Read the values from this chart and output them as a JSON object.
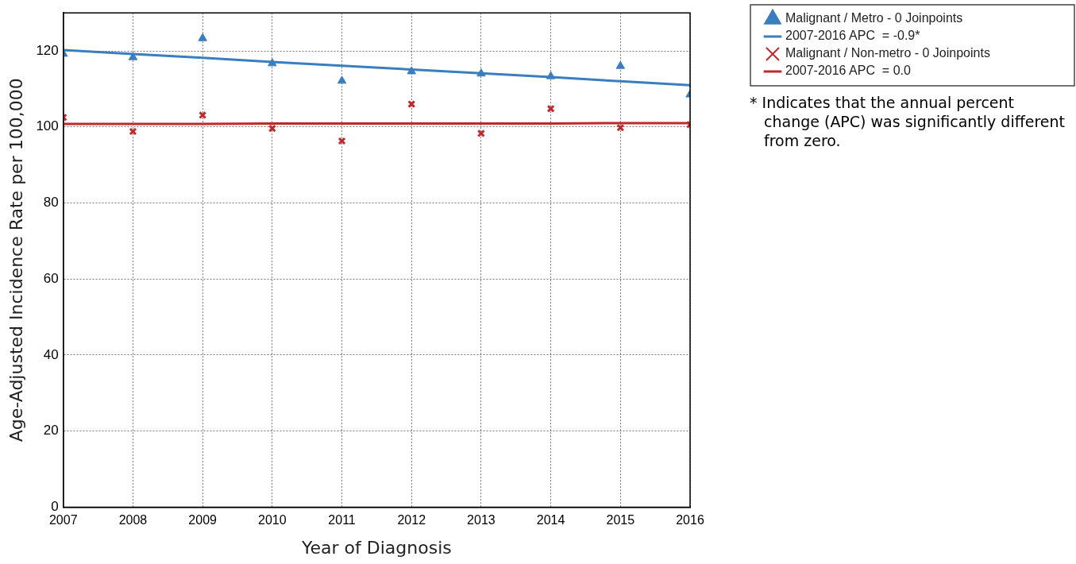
{
  "chart_data": {
    "type": "scatter",
    "xlabel": "Year of Diagnosis",
    "ylabel": "Age-Adjusted Incidence Rate per 100,000",
    "x": [
      2007,
      2008,
      2009,
      2010,
      2011,
      2012,
      2013,
      2014,
      2015,
      2016
    ],
    "series": [
      {
        "name": "Malignant / Metro - 0 Joinpoints",
        "type": "scatter",
        "marker": "triangle",
        "color": "#3a7ebf",
        "values": [
          119.2,
          118.3,
          123.3,
          116.7,
          112.1,
          114.6,
          114.0,
          113.3,
          116.0,
          108.5
        ]
      },
      {
        "name": "2007-2016 APC  = -0.9*",
        "type": "line",
        "marker": "none",
        "color": "#3a7ebf",
        "values": [
          120.2,
          119.2,
          118.2,
          117.1,
          116.1,
          115.1,
          114.1,
          113.1,
          112.0,
          111.0
        ]
      },
      {
        "name": "Malignant / Non-metro - 0 Joinpoints",
        "type": "scatter",
        "marker": "cross",
        "color": "#c0282d",
        "values": [
          102.5,
          98.8,
          103.1,
          99.6,
          96.3,
          106.0,
          98.3,
          104.8,
          99.8,
          100.6
        ]
      },
      {
        "name": "2007-2016 APC  = 0.0",
        "type": "line",
        "marker": "none",
        "color": "#c0282d",
        "values": [
          100.8,
          100.8,
          100.8,
          100.9,
          100.9,
          100.9,
          100.9,
          100.9,
          101.0,
          101.0
        ]
      }
    ],
    "xlim": [
      2007,
      2016
    ],
    "xticks": [
      2007,
      2008,
      2009,
      2010,
      2011,
      2012,
      2013,
      2014,
      2015,
      2016
    ],
    "ylim": [
      0,
      130
    ],
    "yticks": [
      0,
      20,
      40,
      60,
      80,
      100,
      120
    ],
    "grid": true,
    "legend": "right",
    "annotations": [
      "* Indicates that the annual percent change (APC) was significantly different from zero."
    ]
  }
}
